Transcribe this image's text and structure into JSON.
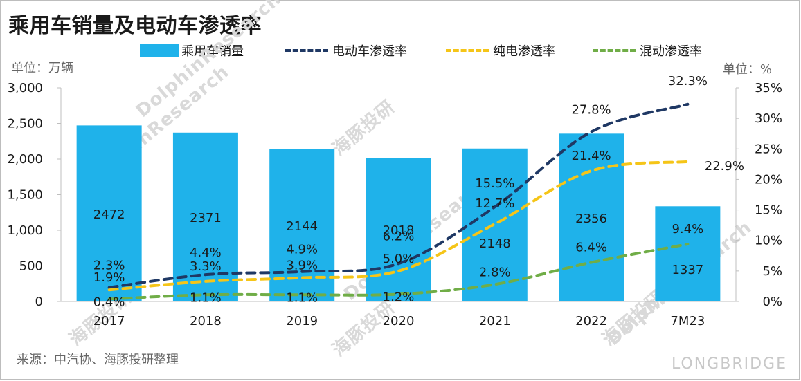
{
  "title": "乘用车销量及电动车渗透率",
  "unit_left": "单位：万辆",
  "unit_right": "单位：%",
  "source": "来源：中汽协、海豚投研整理",
  "brand": "LONGBRIDGE",
  "watermarks": [
    "海豚投研",
    "DolphinResearch",
    "海豚投研",
    "DolphinResearch",
    "海豚投研",
    "DolphinResearch",
    "海豚投研",
    "DolphinResearch"
  ],
  "colors": {
    "bar": "#1fb2ea",
    "ev": "#1f3864",
    "bev": "#f5c518",
    "phev": "#70ad47"
  },
  "chart_data": {
    "type": "bar",
    "title": "乘用车销量及电动车渗透率",
    "categories": [
      "2017",
      "2018",
      "2019",
      "2020",
      "2021",
      "2022",
      "7M23"
    ],
    "y_left": {
      "ylim": [
        0,
        3000
      ],
      "ticks": [
        "0",
        "500",
        "1,000",
        "1,500",
        "2,000",
        "2,500",
        "3,000"
      ]
    },
    "y_right": {
      "ylim": [
        0,
        35
      ],
      "ticks": [
        "0%",
        "5%",
        "10%",
        "15%",
        "20%",
        "25%",
        "30%",
        "35%"
      ]
    },
    "series": [
      {
        "name": "乘用车销量",
        "kind": "bar",
        "axis": "left",
        "values": [
          2472,
          2371,
          2144,
          2018,
          2148,
          2356,
          1337
        ],
        "labels": [
          "2472",
          "2371",
          "2144",
          "2018",
          "2148",
          "2356",
          "1337"
        ]
      },
      {
        "name": "电动车渗透率",
        "kind": "line",
        "axis": "right",
        "values": [
          2.3,
          4.4,
          4.9,
          6.2,
          15.5,
          27.8,
          32.3
        ],
        "labels": [
          "2.3%",
          "4.4%",
          "4.9%",
          "6.2%",
          "15.5%",
          "27.8%",
          "32.3%"
        ]
      },
      {
        "name": "纯电渗透率",
        "kind": "line",
        "axis": "right",
        "values": [
          1.9,
          3.3,
          3.9,
          5.0,
          12.7,
          21.4,
          22.9
        ],
        "labels": [
          "1.9%",
          "3.3%",
          "3.9%",
          "5.0%",
          "12.7%",
          "21.4%",
          "22.9%"
        ]
      },
      {
        "name": "混动渗透率",
        "kind": "line",
        "axis": "right",
        "values": [
          0.4,
          1.1,
          1.1,
          1.2,
          2.8,
          6.4,
          9.4
        ],
        "labels": [
          "0.4%",
          "1.1%",
          "1.1%",
          "1.2%",
          "2.8%",
          "6.4%",
          "9.4%"
        ]
      }
    ],
    "legend": "top",
    "grid": false
  }
}
